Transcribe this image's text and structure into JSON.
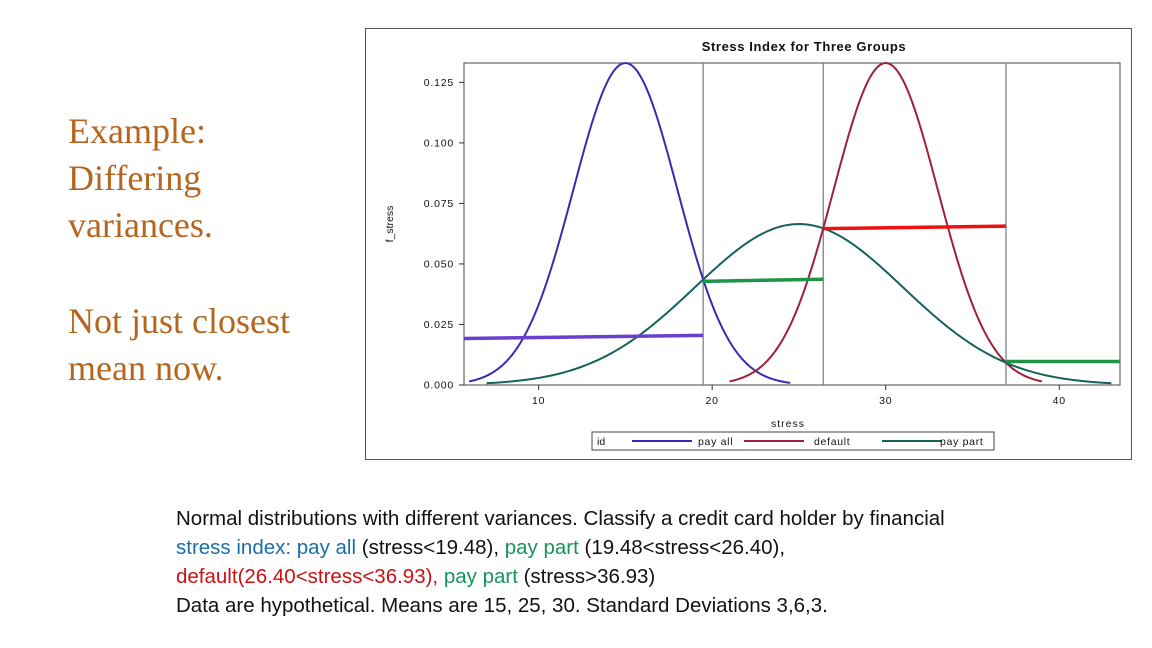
{
  "slide": {
    "side_text_1": "Example: Differing variances.",
    "side_text_2": "Not just closest mean now."
  },
  "caption": {
    "line1": "Normal distributions with different variances.  Classify a credit card holder by financial",
    "line2_a": "stress index: ",
    "line2_b": "pay all",
    "line2_c": " (stress<19.48), ",
    "line2_d": "pay part",
    "line2_e": " (19.48<stress<26.40),",
    "line3_a": "default",
    "line3_b": "(26.40<stress<36.93), ",
    "line3_c": "pay part",
    "line3_d": " (stress>36.93)",
    "line4": "Data are hypothetical. Means are 15, 25, 30. Standard Deviations 3,6,3."
  },
  "colors": {
    "blue": "#1a6ea8",
    "green": "#17935a",
    "red": "#cc1111",
    "side_text": "#b5651d"
  },
  "chart_data": {
    "type": "line",
    "title": "Stress Index for Three Groups",
    "xlabel": "stress",
    "ylabel": "f_stress",
    "xlim": [
      5.7,
      43.5
    ],
    "ylim": [
      0,
      0.133
    ],
    "xticks": [
      10,
      20,
      30,
      40
    ],
    "yticks": [
      {
        "value": 0.0,
        "label": "0.000"
      },
      {
        "value": 0.025,
        "label": "0.025"
      },
      {
        "value": 0.05,
        "label": "0.050"
      },
      {
        "value": 0.075,
        "label": "0.075"
      },
      {
        "value": 0.1,
        "label": "0.100"
      },
      {
        "value": 0.125,
        "label": "0.125"
      }
    ],
    "legend": {
      "title": "id",
      "position": "bottom"
    },
    "series": [
      {
        "name": "pay all",
        "mean": 15,
        "sd": 3,
        "x_range": [
          6,
          24.5
        ],
        "color": "#3b2ab0"
      },
      {
        "name": "default",
        "mean": 30,
        "sd": 3,
        "x_range": [
          21,
          39
        ],
        "color": "#a0203a"
      },
      {
        "name": "pay part",
        "mean": 25,
        "sd": 6,
        "x_range": [
          7,
          43
        ],
        "color": "#14625c"
      }
    ],
    "boundaries": [
      19.48,
      26.4,
      36.93
    ],
    "decision_segments": [
      {
        "group": "pay all",
        "x": [
          5.7,
          19.48
        ],
        "y": [
          0.0192,
          0.0205
        ],
        "color": "#6a3fcf"
      },
      {
        "group": "pay part",
        "x": [
          19.48,
          26.4
        ],
        "y": [
          0.0428,
          0.0437
        ],
        "color": "#1e9448"
      },
      {
        "group": "default",
        "x": [
          26.4,
          36.93
        ],
        "y": [
          0.0646,
          0.0656
        ],
        "color": "#ee1111"
      },
      {
        "group": "pay part",
        "x": [
          36.93,
          43.5
        ],
        "y": [
          0.0097,
          0.0097
        ],
        "color": "#1e9448"
      }
    ]
  }
}
